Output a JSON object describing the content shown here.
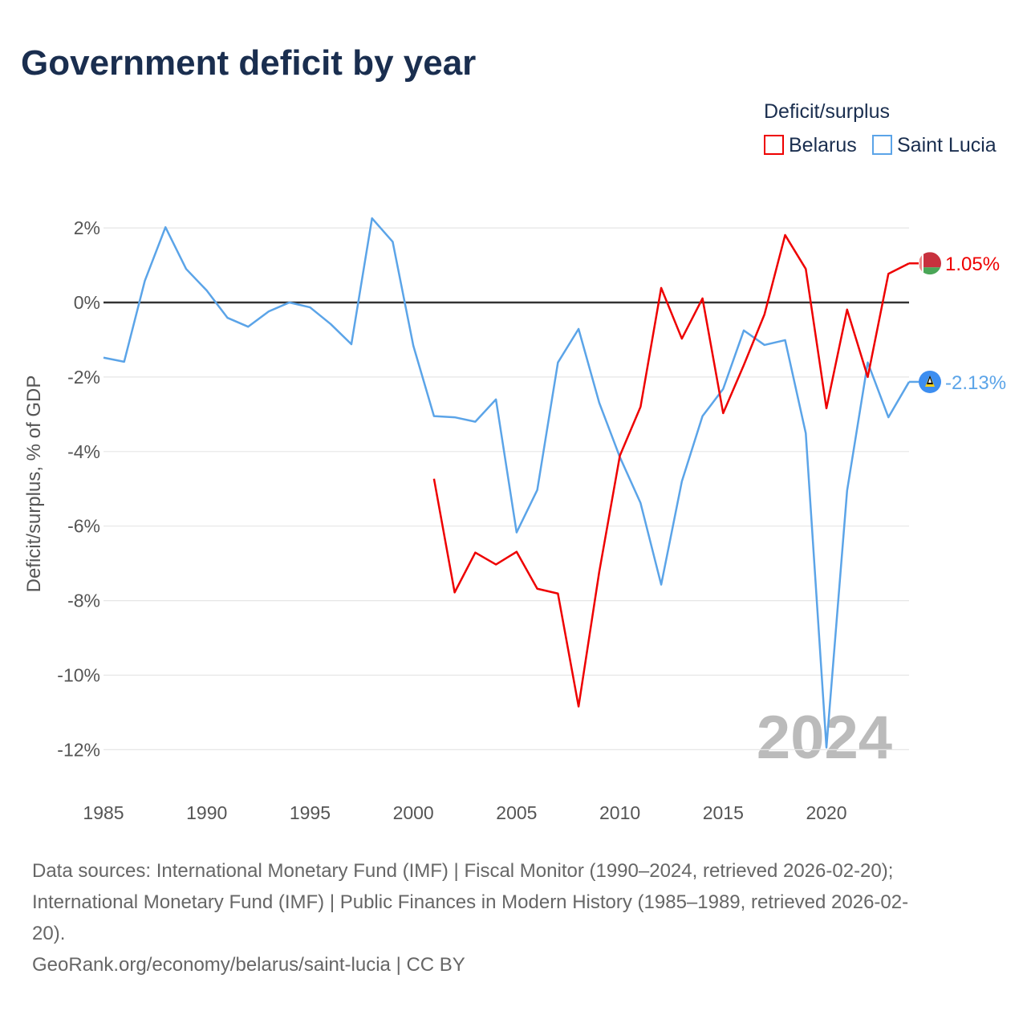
{
  "chart_data": {
    "type": "line",
    "title": "Government deficit by year",
    "ylabel": "Deficit/surplus, % of GDP",
    "xlabel": "",
    "ylim": [
      -12,
      2
    ],
    "xlim": [
      1985,
      2024
    ],
    "yticks": [
      2,
      0,
      -2,
      -4,
      -6,
      -8,
      -10,
      -12
    ],
    "ytick_labels": [
      "2%",
      "0%",
      "-2%",
      "-4%",
      "-6%",
      "-8%",
      "-10%",
      "-12%"
    ],
    "xticks": [
      1985,
      1990,
      1995,
      2000,
      2005,
      2010,
      2015,
      2020
    ],
    "xtick_labels": [
      "1985",
      "1990",
      "1995",
      "2000",
      "2005",
      "2010",
      "2015",
      "2020"
    ],
    "legend_title": "Deficit/surplus",
    "legend_position": "top-right",
    "year_watermark": "2024",
    "series": [
      {
        "name": "Belarus",
        "color": "#ee0000",
        "end_label": "1.05%",
        "flag": "belarus-flag",
        "x": [
          2001,
          2002,
          2003,
          2004,
          2005,
          2006,
          2007,
          2008,
          2009,
          2010,
          2011,
          2012,
          2013,
          2014,
          2015,
          2016,
          2017,
          2018,
          2019,
          2020,
          2021,
          2022,
          2023,
          2024
        ],
        "values": [
          -4.73,
          -7.78,
          -6.71,
          -7.03,
          -6.69,
          -7.68,
          -7.81,
          -10.84,
          -7.23,
          -4.11,
          -2.8,
          0.39,
          -0.97,
          0.11,
          -2.97,
          -1.68,
          -0.32,
          1.81,
          0.9,
          -2.84,
          -0.19,
          -2.0,
          0.77,
          1.05
        ]
      },
      {
        "name": "Saint Lucia",
        "color": "#5ba4e8",
        "end_label": "-2.13%",
        "flag": "saint-lucia-flag",
        "x": [
          1985,
          1986,
          1987,
          1988,
          1989,
          1990,
          1991,
          1992,
          1993,
          1994,
          1995,
          1996,
          1997,
          1998,
          1999,
          2000,
          2001,
          2002,
          2003,
          2004,
          2005,
          2006,
          2007,
          2008,
          2009,
          2010,
          2011,
          2012,
          2013,
          2014,
          2015,
          2016,
          2017,
          2018,
          2019,
          2020,
          2021,
          2022,
          2023,
          2024
        ],
        "values": [
          -1.48,
          -1.59,
          0.58,
          2.02,
          0.9,
          0.32,
          -0.41,
          -0.65,
          -0.24,
          0,
          -0.13,
          -0.58,
          -1.12,
          2.26,
          1.63,
          -1.16,
          -3.05,
          -3.08,
          -3.2,
          -2.6,
          -6.17,
          -5.03,
          -1.61,
          -0.71,
          -2.69,
          -4.15,
          -5.38,
          -7.57,
          -4.8,
          -3.05,
          -2.32,
          -0.75,
          -1.14,
          -1.01,
          -3.51,
          -11.94,
          -5.05,
          -1.61,
          -3.08,
          -2.13
        ]
      }
    ]
  },
  "footer": {
    "line1": "Data sources: International Monetary Fund (IMF) | Fiscal Monitor (1990–2024, retrieved 2026-02-20);",
    "line2": "International Monetary Fund (IMF) | Public Finances in Modern History (1985–1989, retrieved 2026-02-",
    "line3": "20).",
    "line4": "GeoRank.org/economy/belarus/saint-lucia | CC BY"
  }
}
